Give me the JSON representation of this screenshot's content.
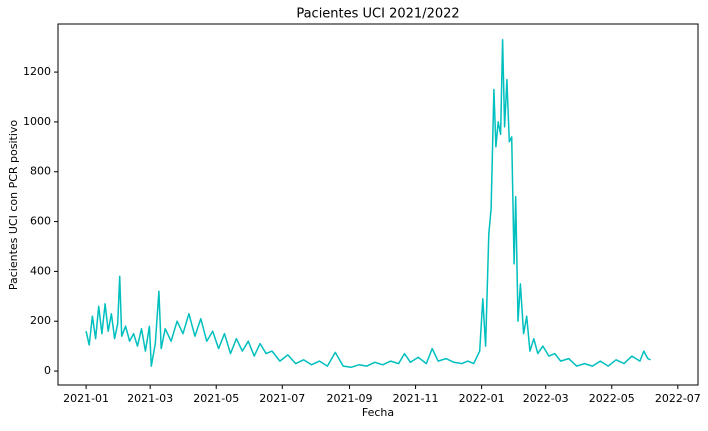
{
  "chart_data": {
    "type": "line",
    "title": "Pacientes UCI 2021/2022",
    "xlabel": "Fecha",
    "ylabel": "Pacientes UCI con PCR positivo",
    "x": [
      2021.0,
      2021.008,
      2021.016,
      2021.024,
      2021.032,
      2021.04,
      2021.048,
      2021.056,
      2021.064,
      2021.072,
      2021.08,
      2021.085,
      2021.09,
      2021.1,
      2021.11,
      2021.12,
      2021.13,
      2021.14,
      2021.15,
      2021.16,
      2021.165,
      2021.175,
      2021.184,
      2021.19,
      2021.2,
      2021.215,
      2021.23,
      2021.245,
      2021.26,
      2021.275,
      2021.29,
      2021.305,
      2021.32,
      2021.335,
      2021.35,
      2021.365,
      2021.38,
      2021.395,
      2021.41,
      2021.425,
      2021.44,
      2021.455,
      2021.47,
      2021.49,
      2021.51,
      2021.53,
      2021.55,
      2021.57,
      2021.59,
      2021.61,
      2021.63,
      2021.65,
      2021.67,
      2021.69,
      2021.71,
      2021.73,
      2021.75,
      2021.77,
      2021.79,
      2021.805,
      2021.82,
      2021.84,
      2021.86,
      2021.875,
      2021.89,
      2021.91,
      2021.93,
      2021.95,
      2021.965,
      2021.98,
      2021.995,
      2022.003,
      2022.01,
      2022.018,
      2022.024,
      2022.031,
      2022.036,
      2022.042,
      2022.048,
      2022.053,
      2022.058,
      2022.064,
      2022.07,
      2022.076,
      2022.082,
      2022.086,
      2022.092,
      2022.098,
      2022.106,
      2022.114,
      2022.122,
      2022.132,
      2022.142,
      2022.155,
      2022.17,
      2022.185,
      2022.2,
      2022.22,
      2022.24,
      2022.26,
      2022.28,
      2022.3,
      2022.32,
      2022.34,
      2022.36,
      2022.38,
      2022.4,
      2022.41,
      2022.42,
      2022.427
    ],
    "series": [
      {
        "color": "#00bfbf",
        "values": [
          160,
          105,
          220,
          130,
          260,
          150,
          270,
          160,
          230,
          130,
          190,
          380,
          140,
          180,
          120,
          150,
          100,
          170,
          80,
          180,
          20,
          110,
          320,
          90,
          170,
          120,
          200,
          150,
          230,
          140,
          210,
          120,
          160,
          90,
          150,
          70,
          130,
          80,
          120,
          60,
          110,
          70,
          80,
          40,
          65,
          30,
          45,
          25,
          40,
          20,
          75,
          20,
          15,
          25,
          20,
          35,
          25,
          40,
          30,
          70,
          35,
          55,
          30,
          90,
          40,
          50,
          35,
          30,
          40,
          30,
          80,
          290,
          100,
          550,
          650,
          1130,
          900,
          1000,
          950,
          1330,
          980,
          1170,
          920,
          940,
          430,
          700,
          200,
          350,
          150,
          220,
          80,
          130,
          70,
          100,
          60,
          70,
          40,
          50,
          20,
          30,
          20,
          40,
          20,
          45,
          30,
          60,
          40,
          80,
          50,
          45
        ]
      }
    ],
    "xlim": [
      2020.929,
      2022.547
    ],
    "xticks": [
      {
        "value": 2021.0,
        "label": "2021-01"
      },
      {
        "value": 2021.162,
        "label": "2021-03"
      },
      {
        "value": 2021.329,
        "label": "2021-05"
      },
      {
        "value": 2021.496,
        "label": "2021-07"
      },
      {
        "value": 2021.666,
        "label": "2021-09"
      },
      {
        "value": 2021.833,
        "label": "2021-11"
      },
      {
        "value": 2022.0,
        "label": "2022-01"
      },
      {
        "value": 2022.162,
        "label": "2022-03"
      },
      {
        "value": 2022.329,
        "label": "2022-05"
      },
      {
        "value": 2022.496,
        "label": "2022-07"
      }
    ],
    "ylim": [
      -56,
      1393
    ],
    "yticks": [
      0,
      200,
      400,
      600,
      800,
      1000,
      1200
    ],
    "grid": false
  }
}
